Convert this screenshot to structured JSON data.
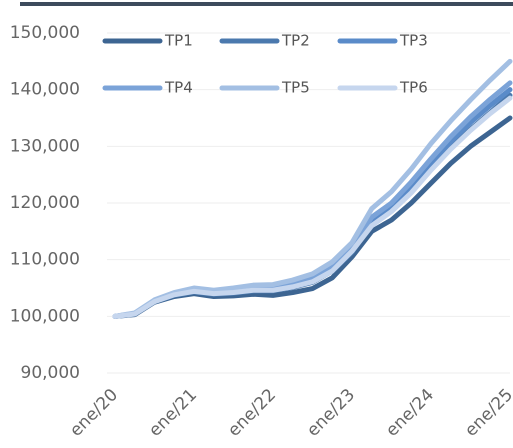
{
  "chart_data": {
    "type": "line",
    "categories": [
      "ene/20",
      null,
      null,
      null,
      "ene/21",
      null,
      null,
      null,
      "ene/22",
      null,
      null,
      null,
      "ene/23",
      null,
      null,
      null,
      "ene/24",
      null,
      null,
      null,
      "ene/25"
    ],
    "series": [
      {
        "name": "TP1",
        "color": "#3d6592",
        "values": [
          100000,
          100300,
          102500,
          103500,
          104000,
          103500,
          103600,
          103900,
          103700,
          104200,
          104900,
          106800,
          110500,
          115000,
          117000,
          120000,
          123500,
          127000,
          130000,
          132500,
          135000
        ]
      },
      {
        "name": "TP2",
        "color": "#4b79ae",
        "values": [
          100000,
          100400,
          102600,
          103700,
          104300,
          103900,
          104100,
          104500,
          104500,
          105100,
          106000,
          108000,
          111300,
          116500,
          118800,
          122200,
          126000,
          129800,
          133000,
          136000,
          139000
        ]
      },
      {
        "name": "TP3",
        "color": "#5a8bc9",
        "values": [
          100000,
          100500,
          102700,
          103900,
          104500,
          104100,
          104400,
          104800,
          104800,
          105500,
          106400,
          108500,
          111700,
          117000,
          119500,
          123000,
          127000,
          130800,
          134200,
          137200,
          140000
        ]
      },
      {
        "name": "TP4",
        "color": "#7ba3d8",
        "values": [
          100000,
          100500,
          102800,
          104000,
          104700,
          104300,
          104600,
          105000,
          105000,
          105800,
          106700,
          108800,
          112000,
          117500,
          120000,
          123700,
          127800,
          131700,
          135200,
          138300,
          141200
        ]
      },
      {
        "name": "TP5",
        "color": "#a3bfe3",
        "values": [
          100000,
          100600,
          102900,
          104200,
          105000,
          104600,
          105000,
          105500,
          105600,
          106400,
          107500,
          109600,
          113000,
          119000,
          122000,
          126000,
          130500,
          134500,
          138200,
          141700,
          145000
        ]
      },
      {
        "name": "TP6",
        "color": "#c6d6ee",
        "values": [
          100000,
          100400,
          102600,
          103800,
          104400,
          104000,
          104200,
          104600,
          104600,
          105200,
          106100,
          108000,
          111500,
          116000,
          118500,
          121800,
          125800,
          129500,
          132800,
          135800,
          138500
        ]
      }
    ],
    "ylim": [
      90000,
      150000
    ],
    "yticks": [
      {
        "value": 90000,
        "label": "90,000"
      },
      {
        "value": 100000,
        "label": "100,000"
      },
      {
        "value": 110000,
        "label": "110,000"
      },
      {
        "value": 120000,
        "label": "120,000"
      },
      {
        "value": 130000,
        "label": "130,000"
      },
      {
        "value": 140000,
        "label": "140,000"
      },
      {
        "value": 150000,
        "label": "150,000"
      }
    ],
    "grid": true
  }
}
